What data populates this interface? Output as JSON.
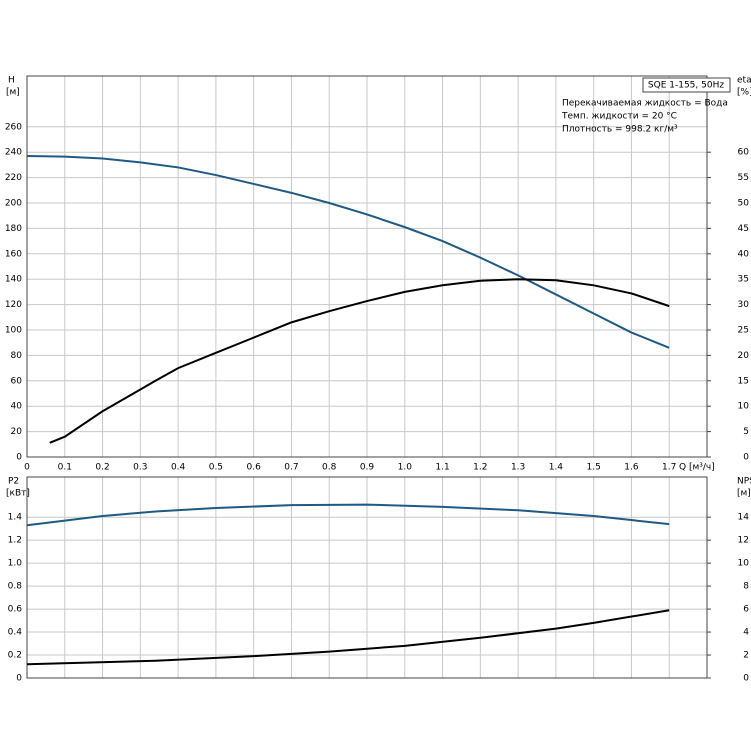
{
  "chart_data": [
    {
      "type": "line",
      "ylabel": "H",
      "yunit": "[м]",
      "y2label": "eta",
      "y2unit": "[%]",
      "xlabel": "Q [м³/ч]",
      "annotations": [
        "SQE 1-155, 50Hz",
        "Перекачиваемая жидкость = Вода",
        "Темп. жидкости = 20 °C",
        "Плотность = 998.2 кг/м³"
      ],
      "xlim": [
        0,
        1.8
      ],
      "xticks": [
        0,
        0.1,
        0.2,
        0.3,
        0.4,
        0.5,
        0.6,
        0.7,
        0.8,
        0.9,
        {
          "value": 1,
          "label": "1.0"
        },
        1.1,
        1.2,
        1.3,
        1.4,
        1.5,
        1.6,
        1.7
      ],
      "ylim": [
        0,
        300
      ],
      "yticks": [
        0,
        20,
        40,
        60,
        80,
        100,
        120,
        140,
        160,
        180,
        200,
        220,
        240,
        260
      ],
      "y2lim": [
        0,
        75
      ],
      "y2ticks": [
        0,
        5,
        10,
        15,
        20,
        25,
        30,
        35,
        40,
        45,
        50,
        55,
        60
      ],
      "grid": true,
      "series": [
        {
          "color": "#1f5a85",
          "axis": "y",
          "x": [
            0,
            0.1,
            0.2,
            0.3,
            0.4,
            0.5,
            0.6,
            0.7,
            0.8,
            0.9,
            1,
            1.1,
            1.2,
            1.3,
            1.4,
            1.5,
            1.6,
            1.7
          ],
          "values": [
            237,
            236.5,
            235,
            232,
            228,
            222,
            215,
            208,
            200,
            191,
            181,
            170,
            157,
            143,
            128,
            113,
            98,
            86
          ]
        },
        {
          "color": "#000000",
          "axis": "y2",
          "x": [
            0.06,
            0.1,
            0.2,
            0.34,
            0.4,
            0.5,
            0.6,
            0.7,
            0.8,
            0.9,
            1,
            1.1,
            1.2,
            1.3,
            1.4,
            1.5,
            1.6,
            1.7
          ],
          "values": [
            2.8,
            4,
            9,
            15,
            17.5,
            20.5,
            23.5,
            26.5,
            28.7,
            30.7,
            32.5,
            33.8,
            34.7,
            35,
            34.8,
            33.8,
            32.2,
            29.7
          ]
        }
      ]
    },
    {
      "type": "line",
      "ylabel": "P2",
      "yunit": "[кВт]",
      "y2label": "NPSH",
      "y2unit": "[м]",
      "xlim": [
        0,
        1.8
      ],
      "xticks": [
        0,
        0.1,
        0.2,
        0.3,
        0.4,
        0.5,
        0.6,
        0.7,
        0.8,
        0.9,
        1,
        1.1,
        1.2,
        1.3,
        1.4,
        1.5,
        1.6,
        1.7
      ],
      "ylim": [
        0,
        1.75
      ],
      "yticks": [
        0,
        0.2,
        0.4,
        0.6,
        0.8,
        {
          "value": 1,
          "label": "1.0"
        },
        1.2,
        1.4
      ],
      "y2lim": [
        0,
        17.5
      ],
      "y2ticks": [
        0,
        2,
        4,
        6,
        8,
        10,
        12,
        14
      ],
      "grid": true,
      "series": [
        {
          "color": "#1f5a85",
          "axis": "y",
          "x": [
            0,
            0.2,
            0.34,
            0.5,
            0.7,
            0.9,
            1.1,
            1.3,
            1.5,
            1.7
          ],
          "values": [
            1.33,
            1.41,
            1.45,
            1.48,
            1.505,
            1.51,
            1.49,
            1.46,
            1.41,
            1.34
          ]
        },
        {
          "color": "#000000",
          "axis": "y2",
          "x": [
            0,
            0.34,
            0.6,
            0.8,
            1,
            1.2,
            1.4,
            1.5,
            1.7
          ],
          "values": [
            1.2,
            1.5,
            1.9,
            2.3,
            2.8,
            3.5,
            4.3,
            4.8,
            5.9
          ]
        }
      ]
    }
  ]
}
